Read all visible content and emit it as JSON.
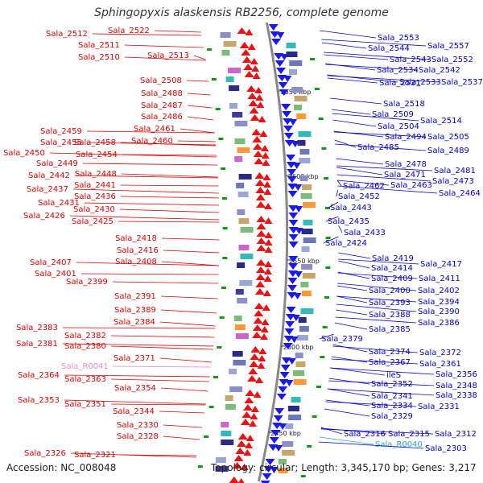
{
  "title": "Sphingopyxis alaskensis RB2256, complete genome",
  "accession": "Accession: NC_008048",
  "topology": "Topology: circular; Length: 3,345,170 bp; Genes: 3,217",
  "colors": {
    "left_label": "#dd0000",
    "right_label": "#0000cc",
    "ncrna_left": "#ee88cc",
    "ncrna_right": "#22aacc",
    "backbone": "#888888"
  },
  "kbp_marks": [
    "2650 kbp",
    "2600 kbp",
    "2550 kbp",
    "2500 kbp",
    "2450 kbp"
  ],
  "left_labels": [
    "Sala_2522",
    "Sala_2512",
    "Sala_2511",
    "Sala_2510",
    "Sala_2513",
    "Sala_2508",
    "Sala_2488",
    "Sala_2487",
    "Sala_2486",
    "Sala_2461",
    "Sala_2460",
    "Sala_2459",
    "Sala_2455",
    "Sala_2458",
    "Sala_2450",
    "Sala_2454",
    "Sala_2449",
    "Sala_2442",
    "Sala_2448",
    "Sala_2437",
    "Sala_2441",
    "Sala_2436",
    "Sala_2431",
    "Sala_2430",
    "Sala_2426",
    "Sala_2425",
    "Sala_2418",
    "Sala_2416",
    "Sala_2407",
    "Sala_2408",
    "Sala_2401",
    "Sala_2399",
    "Sala_2391",
    "Sala_2389",
    "Sala_2384",
    "Sala_2383",
    "Sala_2382",
    "Sala_2381",
    "Sala_2380",
    "Sala_2371",
    "Sala_R0041",
    "Sala_2364",
    "Sala_2363",
    "Sala_2354",
    "Sala_2353",
    "Sala_2351",
    "Sala_2344",
    "Sala_2330",
    "Sala_2328",
    "Sala_2326",
    "Sala_2321"
  ],
  "right_labels": [
    "Sala_2553",
    "Sala_2557",
    "Sala_2544",
    "Sala_2543",
    "Sala_2552",
    "Sala_2534",
    "Sala_2542",
    "Sala_2521",
    "Sala_2533",
    "Sala_2537",
    "Sala_2518",
    "Sala_2509",
    "Sala_2514",
    "Sala_2504",
    "Sala_2494",
    "Sala_2505",
    "Sala_2485",
    "Sala_2489",
    "Sala_2478",
    "Sala_2481",
    "Sala_2471",
    "Sala_2473",
    "Sala_2462",
    "Sala_2463",
    "Sala_2464",
    "Sala_2452",
    "Sala_2443",
    "Sala_2435",
    "Sala_2433",
    "Sala_2424",
    "Sala_2419",
    "Sala_2417",
    "Sala_2414",
    "Sala_2409",
    "Sala_2411",
    "Sala_2400",
    "Sala_2402",
    "Sala_2393",
    "Sala_2394",
    "Sala_2388",
    "Sala_2390",
    "Sala_2385",
    "Sala_2386",
    "Sala_2379",
    "Sala_2374",
    "Sala_2372",
    "Sala_2367",
    "Sala_2361",
    "ileS",
    "Sala_2356",
    "Sala_2352",
    "Sala_2348",
    "Sala_2341",
    "Sala_2338",
    "Sala_2334",
    "Sala_2331",
    "Sala_2329",
    "Sala_2316",
    "Sala_2315",
    "Sala_2312",
    "Sala_R0040",
    "Sala_2303"
  ]
}
